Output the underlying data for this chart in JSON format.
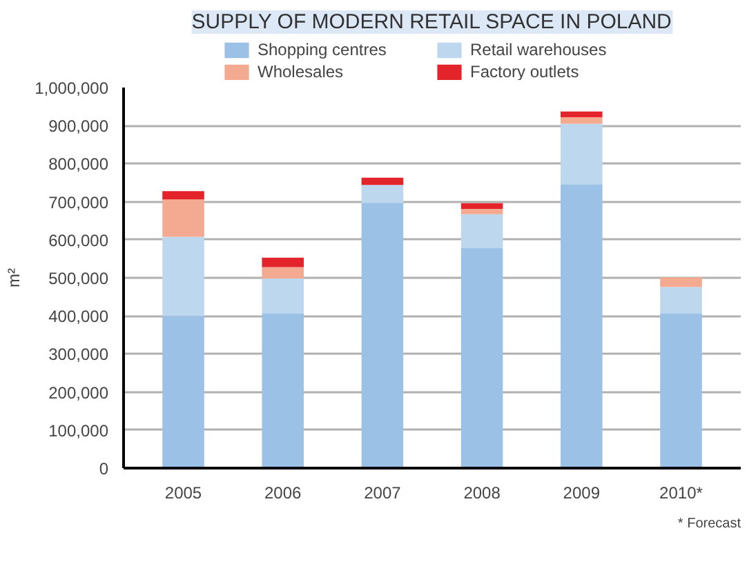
{
  "chart_data": {
    "type": "bar",
    "title": "SUPPLY OF MODERN RETAIL SPACE IN POLAND",
    "ylabel": "m²",
    "stacked": true,
    "categories": [
      "2005",
      "2006",
      "2007",
      "2008",
      "2009",
      "2010*"
    ],
    "series": [
      {
        "name": "Shopping centres",
        "color": "#9bc2e6",
        "values": [
          400000,
          406000,
          697000,
          578000,
          746000,
          406000
        ]
      },
      {
        "name": "Retail warehouses",
        "color": "#bdd7ee",
        "values": [
          208000,
          92000,
          47000,
          89000,
          159000,
          70000
        ]
      },
      {
        "name": "Wholesales",
        "color": "#f4aa90",
        "values": [
          98000,
          30000,
          0,
          14000,
          17000,
          25000
        ]
      },
      {
        "name": "Factory outlets",
        "color": "#e3242b",
        "values": [
          22000,
          25000,
          19000,
          15000,
          15000,
          0
        ]
      }
    ],
    "ylim": [
      0,
      1000000
    ],
    "yticks": [
      {
        "value": 0,
        "label": "0"
      },
      {
        "value": 100000,
        "label": "100,000"
      },
      {
        "value": 200000,
        "label": "200,000"
      },
      {
        "value": 300000,
        "label": "300,000"
      },
      {
        "value": 400000,
        "label": "400,000"
      },
      {
        "value": 500000,
        "label": "500,000"
      },
      {
        "value": 600000,
        "label": "600,000"
      },
      {
        "value": 700000,
        "label": "700,000"
      },
      {
        "value": 800000,
        "label": "800,000"
      },
      {
        "value": 900000,
        "label": "900,000"
      },
      {
        "value": 1000000,
        "label": "1,000,000"
      }
    ],
    "grid": "y",
    "legend": "top",
    "annotations": [
      "* Forecast"
    ]
  }
}
